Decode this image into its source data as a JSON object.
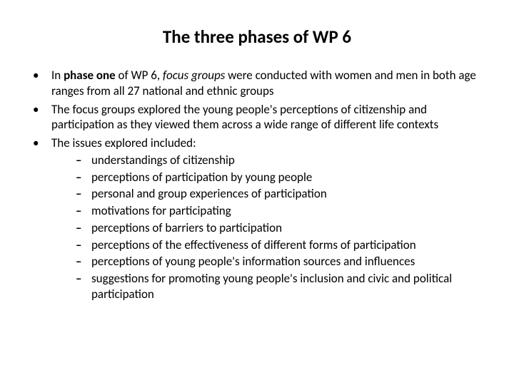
{
  "title": "The three phases of WP 6",
  "bullets": {
    "b1_pre": "In ",
    "b1_bold1": "phase one",
    "b1_mid": " of WP 6, ",
    "b1_ital": "focus groups",
    "b1_post": " were conducted with women and men in both age ranges from all 27 national and ethnic groups",
    "b2": "The focus groups explored the young people's perceptions of citizenship and participation as they viewed them across a wide range of different life contexts",
    "b3": "The issues explored included:"
  },
  "sub": [
    "understandings of citizenship",
    "perceptions of participation by young people",
    "personal and group experiences of participation",
    "motivations for participating",
    "perceptions of barriers to participation",
    "perceptions of the effectiveness of different forms of participation",
    "perceptions of young people's information sources and influences",
    "suggestions for promoting young people's inclusion and civic and political participation"
  ]
}
